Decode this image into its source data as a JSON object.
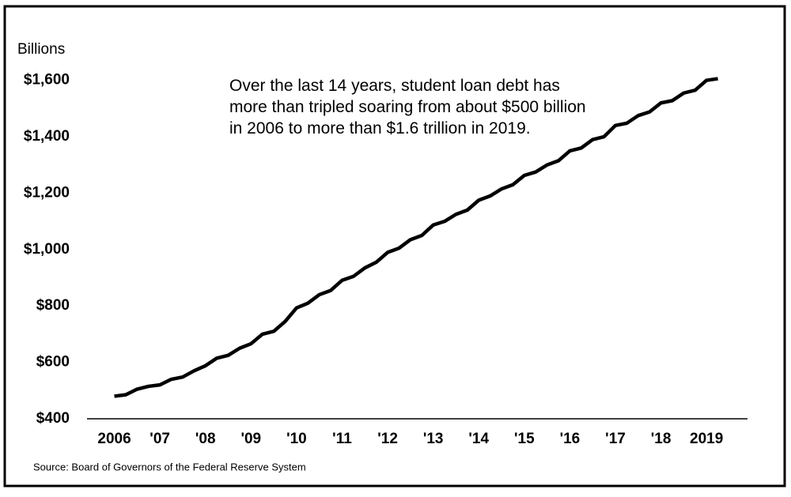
{
  "chart_data": {
    "type": "line",
    "y_axis_label": "Billions",
    "annotation": "Over the last 14 years, student loan debt has more than tripled soaring from about $500 billion in 2006 to more than $1.6 trillion in 2019.",
    "source": "Source: Board of Governors of the Federal Reserve System",
    "x": [
      2006,
      2006.25,
      2006.5,
      2006.75,
      2007,
      2007.25,
      2007.5,
      2007.75,
      2008,
      2008.25,
      2008.5,
      2008.75,
      2009,
      2009.25,
      2009.5,
      2009.75,
      2010,
      2010.25,
      2010.5,
      2010.75,
      2011,
      2011.25,
      2011.5,
      2011.75,
      2012,
      2012.25,
      2012.5,
      2012.75,
      2013,
      2013.25,
      2013.5,
      2013.75,
      2014,
      2014.25,
      2014.5,
      2014.75,
      2015,
      2015.25,
      2015.5,
      2015.75,
      2016,
      2016.25,
      2016.5,
      2016.75,
      2017,
      2017.25,
      2017.5,
      2017.75,
      2018,
      2018.25,
      2018.5,
      2018.75,
      2019,
      2019.25
    ],
    "values": [
      480,
      485,
      505,
      515,
      520,
      540,
      548,
      570,
      588,
      615,
      625,
      650,
      666,
      700,
      710,
      745,
      793,
      810,
      840,
      855,
      891,
      905,
      935,
      955,
      990,
      1005,
      1035,
      1050,
      1087,
      1100,
      1125,
      1140,
      1175,
      1190,
      1215,
      1230,
      1263,
      1275,
      1300,
      1315,
      1350,
      1360,
      1390,
      1400,
      1440,
      1448,
      1475,
      1488,
      1520,
      1528,
      1555,
      1565,
      1600,
      1606
    ],
    "color": "#000000",
    "xlim": [
      2005.4,
      2019.9
    ],
    "xticks": [
      2006,
      {
        "value": 2007,
        "label": "'07"
      },
      {
        "value": 2008,
        "label": "'08"
      },
      {
        "value": 2009,
        "label": "'09"
      },
      {
        "value": 2010,
        "label": "'10"
      },
      {
        "value": 2011,
        "label": "'11"
      },
      {
        "value": 2012,
        "label": "'12"
      },
      {
        "value": 2013,
        "label": "'13"
      },
      {
        "value": 2014,
        "label": "'14"
      },
      {
        "value": 2015,
        "label": "'15"
      },
      {
        "value": 2016,
        "label": "'16"
      },
      {
        "value": 2017,
        "label": "'17"
      },
      {
        "value": 2018,
        "label": "'18"
      },
      2019
    ],
    "ylim": [
      400,
      1700
    ],
    "yticks": [
      {
        "value": 400,
        "label": "$400"
      },
      {
        "value": 600,
        "label": "$600"
      },
      {
        "value": 800,
        "label": "$800"
      },
      {
        "value": 1000,
        "label": "$1,000"
      },
      {
        "value": 1200,
        "label": "$1,200"
      },
      {
        "value": 1400,
        "label": "$1,400"
      },
      {
        "value": 1600,
        "label": "$1,600"
      }
    ],
    "grid": false
  }
}
